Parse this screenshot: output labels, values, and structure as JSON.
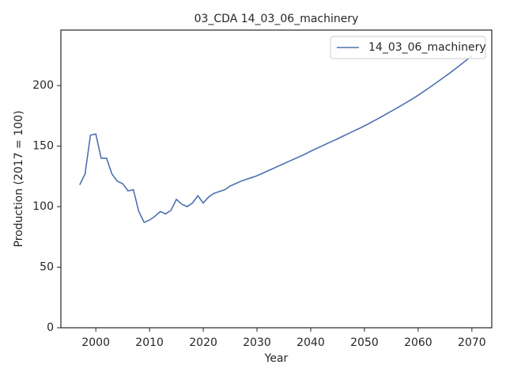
{
  "chart_data": {
    "type": "line",
    "title": "03_CDA 14_03_06_machinery",
    "xlabel": "Year",
    "ylabel": "Production (2017 = 100)",
    "x": [
      1997,
      1998,
      1999,
      2000,
      2001,
      2002,
      2003,
      2004,
      2005,
      2006,
      2007,
      2008,
      2009,
      2010,
      2011,
      2012,
      2013,
      2014,
      2015,
      2016,
      2017,
      2018,
      2019,
      2020,
      2021,
      2022,
      2023,
      2024,
      2025,
      2026,
      2027,
      2028,
      2029,
      2030,
      2031,
      2032,
      2033,
      2034,
      2035,
      2036,
      2037,
      2038,
      2039,
      2040,
      2041,
      2042,
      2043,
      2044,
      2045,
      2046,
      2047,
      2048,
      2049,
      2050,
      2051,
      2052,
      2053,
      2054,
      2055,
      2056,
      2057,
      2058,
      2059,
      2060,
      2061,
      2062,
      2063,
      2064,
      2065,
      2066,
      2067,
      2068,
      2069,
      2070
    ],
    "series": [
      {
        "name": "14_03_06_machinery",
        "color": "#4c72b0",
        "values": [
          118,
          127,
          159,
          160,
          140,
          140,
          127,
          121,
          119,
          113,
          114,
          96,
          87,
          89,
          92,
          96,
          94,
          97,
          106,
          102,
          100,
          103,
          109,
          103,
          108,
          111,
          112.5,
          114,
          117,
          119,
          121,
          122.5,
          124,
          125.5,
          127.5,
          129.5,
          131.5,
          133.5,
          135.5,
          137.5,
          139.5,
          141.5,
          143.5,
          145.8,
          147.8,
          149.9,
          152,
          154,
          156,
          158.2,
          160.3,
          162.4,
          164.5,
          166.7,
          169,
          171.4,
          173.8,
          176.3,
          178.8,
          181.3,
          183.9,
          186.5,
          189.2,
          192,
          195,
          198,
          201.1,
          204.3,
          207.5,
          210.7,
          214.1,
          217.5,
          221,
          224.7
        ]
      }
    ],
    "xlim": [
      1993.5,
      2073.7
    ],
    "xticks": [
      2000,
      2010,
      2020,
      2030,
      2040,
      2050,
      2060,
      2070
    ],
    "ylim": [
      0,
      245.8
    ],
    "yticks": [
      0,
      50,
      100,
      150,
      200
    ],
    "legend": "upper right",
    "grid": false
  }
}
